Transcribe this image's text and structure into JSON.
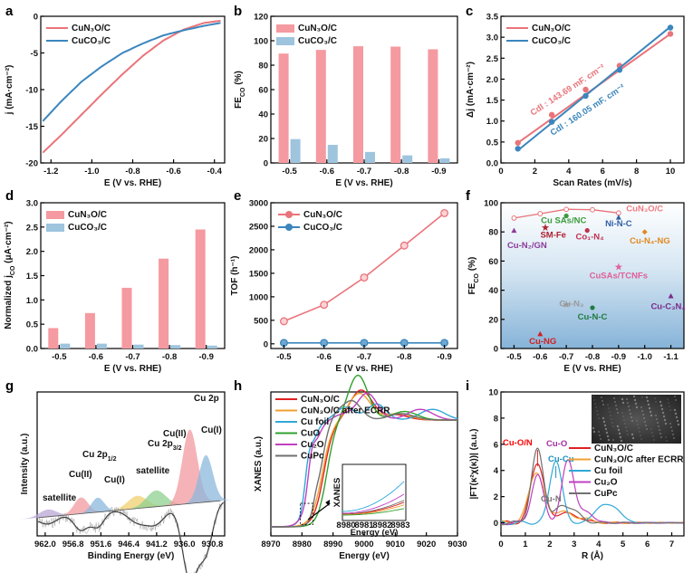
{
  "colors": {
    "red": "#f06a6f",
    "redFill": "#f59aa0",
    "blue": "#2f7fb5",
    "blueFill": "#9ec4de",
    "redLine": "#e9747a",
    "blueLine": "#3b86bd"
  },
  "chart_data": [
    {
      "id": "a",
      "panel": "a",
      "type": "line",
      "xlabel": "E (V vs. RHE)",
      "ylabel": "j (mA·cm⁻²)",
      "xlim": [
        -1.25,
        -0.35
      ],
      "ylim": [
        -20,
        0
      ],
      "xticks": [
        -1.2,
        -1.0,
        -0.8,
        -0.6,
        -0.4
      ],
      "xticklabels": [
        "-1.2",
        "-1.0",
        "-0.8",
        "-0.6",
        "-0.4"
      ],
      "yticks": [
        -20,
        -15,
        -10,
        -5,
        0
      ],
      "yticklabels": [
        "-20",
        "-15",
        "-10",
        "-5",
        "0"
      ],
      "legend_position": "top-left",
      "series": [
        {
          "name": "CuN₃O/C",
          "color": "red",
          "x": [
            -1.24,
            -1.15,
            -1.05,
            -0.95,
            -0.85,
            -0.75,
            -0.65,
            -0.55,
            -0.45,
            -0.37
          ],
          "y": [
            -18.6,
            -16.2,
            -13.4,
            -10.6,
            -7.9,
            -5.4,
            -3.3,
            -1.8,
            -0.9,
            -0.6
          ]
        },
        {
          "name": "CuCO₃/C",
          "color": "blue",
          "x": [
            -1.24,
            -1.15,
            -1.05,
            -0.95,
            -0.85,
            -0.75,
            -0.65,
            -0.55,
            -0.45,
            -0.37
          ],
          "y": [
            -14.3,
            -11.6,
            -8.9,
            -6.8,
            -5.0,
            -3.7,
            -2.6,
            -1.9,
            -1.3,
            -0.9
          ]
        }
      ]
    },
    {
      "id": "b",
      "panel": "b",
      "type": "bar",
      "xlabel": "E (V vs. RHE)",
      "ylabel": "FE",
      "ylabel_sub": "CO",
      "ylabel_unit": " (%)",
      "categories": [
        "-0.5",
        "-0.6",
        "-0.7",
        "-0.8",
        "-0.9"
      ],
      "ylim": [
        0,
        120
      ],
      "yticks": [
        0,
        20,
        40,
        60,
        80,
        100,
        120
      ],
      "yticklabels": [
        "0",
        "20",
        "40",
        "60",
        "80",
        "100",
        "120"
      ],
      "legend_position": "top-left",
      "series": [
        {
          "name": "CuN₃O/C",
          "color": "red",
          "values": [
            89.5,
            92.5,
            95.5,
            95.2,
            93.0
          ]
        },
        {
          "name": "CuCO₃/C",
          "color": "blue",
          "values": [
            19.5,
            14.8,
            9.0,
            6.2,
            3.8
          ]
        }
      ]
    },
    {
      "id": "c",
      "panel": "c",
      "type": "scatter",
      "xlabel": "Scan Rates (mV/s)",
      "ylabel": "Δj (mA·cm⁻²)",
      "xlim": [
        0,
        10.8
      ],
      "ylim": [
        0,
        3.5
      ],
      "xticks": [
        0,
        2,
        4,
        6,
        8,
        10
      ],
      "xticklabels": [
        "0",
        "2",
        "4",
        "6",
        "8",
        "10"
      ],
      "yticks": [
        0,
        0.5,
        1.0,
        1.5,
        2.0,
        2.5,
        3.0,
        3.5
      ],
      "yticklabels": [
        "0.0",
        "0.5",
        "1.0",
        "1.5",
        "2.0",
        "2.5",
        "3.0",
        "3.5"
      ],
      "legend_position": "top-left",
      "series": [
        {
          "name": "CuN₃O/C",
          "color": "red",
          "x": [
            1,
            3,
            5,
            7,
            10
          ],
          "y": [
            0.48,
            1.15,
            1.75,
            2.32,
            3.08
          ],
          "fit": [
            [
              1,
              0.48
            ],
            [
              10,
              3.08
            ]
          ]
        },
        {
          "name": "CuCO₃/C",
          "color": "blue",
          "x": [
            1,
            3,
            5,
            7,
            10
          ],
          "y": [
            0.34,
            0.98,
            1.6,
            2.22,
            3.23
          ],
          "fit": [
            [
              1,
              0.3
            ],
            [
              10,
              3.25
            ]
          ]
        }
      ],
      "annotations": [
        {
          "text": "Cdl : 143.69 mF. cm⁻²",
          "color": "red"
        },
        {
          "text": "Cdl : 160.05  mF. cm⁻²",
          "color": "blue"
        }
      ]
    },
    {
      "id": "d",
      "panel": "d",
      "type": "bar",
      "xlabel": "E (V vs. RHE)",
      "ylabel": "Normalized j",
      "ylabel_sub": "CO",
      "ylabel_unit": " (μA·cm⁻²)",
      "categories": [
        "-0.5",
        "-0.6",
        "-0.7",
        "-0.8",
        "-0.9"
      ],
      "ylim": [
        0,
        3.0
      ],
      "yticks": [
        0,
        0.5,
        1.0,
        1.5,
        2.0,
        2.5,
        3.0
      ],
      "yticklabels": [
        "0.0",
        "0.5",
        "1.0",
        "1.5",
        "2.0",
        "2.5",
        "3.0"
      ],
      "legend_position": "top-left",
      "series": [
        {
          "name": "CuN₃O/C",
          "color": "red",
          "values": [
            0.42,
            0.73,
            1.25,
            1.85,
            2.45
          ]
        },
        {
          "name": "CuCO₃/C",
          "color": "blue",
          "values": [
            0.1,
            0.1,
            0.08,
            0.07,
            0.06
          ]
        }
      ]
    },
    {
      "id": "e",
      "panel": "e",
      "type": "line",
      "xlabel": "E (V vs. RHE)",
      "ylabel": "TOF (h⁻¹)",
      "categories": [
        "-0.5",
        "-0.6",
        "-0.7",
        "-0.8",
        "-0.9"
      ],
      "ylim": [
        -100,
        3000
      ],
      "yticks": [
        0,
        500,
        1000,
        1500,
        2000,
        2500,
        3000
      ],
      "yticklabels": [
        "0",
        "500",
        "1000",
        "1500",
        "2000",
        "2500",
        "3000"
      ],
      "legend_position": "top-left",
      "series": [
        {
          "name": "CuN₃O/C",
          "color": "red",
          "values": [
            480,
            830,
            1410,
            2090,
            2780
          ]
        },
        {
          "name": "CuCO₃/C",
          "color": "blue",
          "values": [
            20,
            20,
            20,
            20,
            20
          ]
        }
      ]
    },
    {
      "id": "f",
      "panel": "f",
      "type": "scatter",
      "xlabel": "E (V vs. RHE)",
      "ylabel": "FE",
      "ylabel_sub": "CO",
      "ylabel_unit": " (%)",
      "xlim": [
        -0.45,
        -1.15
      ],
      "ylim": [
        0,
        100
      ],
      "xticks": [
        -0.5,
        -0.6,
        -0.7,
        -0.8,
        -0.9,
        -1.0,
        -1.1
      ],
      "xticklabels": [
        "-0.5",
        "-0.6",
        "-0.7",
        "-0.8",
        "-0.9",
        "-1.0",
        "-1.1"
      ],
      "yticks": [
        0,
        20,
        40,
        60,
        80,
        100
      ],
      "yticklabels": [
        "0",
        "20",
        "40",
        "60",
        "80",
        "100"
      ],
      "line": {
        "color": "red",
        "x": [
          -0.5,
          -0.6,
          -0.7,
          -0.8,
          -0.9
        ],
        "y": [
          89.5,
          92.5,
          95.5,
          95.2,
          93.0
        ]
      },
      "points": [
        {
          "label": "CuN₃O/C",
          "x": -0.91,
          "y": 95,
          "color": "#f07b82",
          "marker": "none",
          "lx": -1.0,
          "ly": 94
        },
        {
          "label": "Cu SAs/NC",
          "x": -0.7,
          "y": 91,
          "color": "#3a9a3a",
          "marker": "circle",
          "lx": -0.69,
          "ly": 86
        },
        {
          "label": "Ni-N-C",
          "x": -0.9,
          "y": 90,
          "color": "#2f5fa5",
          "marker": "tri",
          "lx": -0.9,
          "ly": 84
        },
        {
          "label": "SM-Fe",
          "x": -0.62,
          "y": 83,
          "color": "#b02030",
          "marker": "star",
          "lx": -0.65,
          "ly": 76
        },
        {
          "label": "Co₁-N₄",
          "x": -0.78,
          "y": 81,
          "color": "#c23050",
          "marker": "circle",
          "lx": -0.79,
          "ly": 75
        },
        {
          "label": "Cu-N₄-NG",
          "x": -1.0,
          "y": 80,
          "color": "#e08a20",
          "marker": "diamond",
          "lx": -1.02,
          "ly": 72
        },
        {
          "label": "Cu-N₂/GN",
          "x": -0.5,
          "y": 81,
          "color": "#8a3a9a",
          "marker": "tri",
          "lx": -0.55,
          "ly": 69
        },
        {
          "label": "CuSAs/TCNFs",
          "x": -0.9,
          "y": 56,
          "color": "#e0609a",
          "marker": "star",
          "lx": -0.9,
          "ly": 48
        },
        {
          "label": "Cu-N₃",
          "x": -0.7,
          "y": 30,
          "color": "#999999",
          "marker": "star",
          "lx": -0.72,
          "ly": 29
        },
        {
          "label": "Cu-N-C",
          "x": -0.8,
          "y": 28,
          "color": "#207a40",
          "marker": "circle",
          "lx": -0.8,
          "ly": 20
        },
        {
          "label": "Cu-C₃N₄",
          "x": -1.1,
          "y": 36,
          "color": "#7a2a8a",
          "marker": "tri",
          "lx": -1.09,
          "ly": 27
        },
        {
          "label": "Cu-NG",
          "x": -0.6,
          "y": 10,
          "color": "#d02020",
          "marker": "tri",
          "lx": -0.61,
          "ly": 3
        }
      ]
    },
    {
      "id": "g",
      "panel": "g",
      "type": "line",
      "xlabel": "Binding Energy (eV)",
      "ylabel": "Intensity (a.u.)",
      "xlim": [
        963.5,
        928.5
      ],
      "xticks": [
        962.0,
        956.8,
        951.6,
        946.4,
        941.2,
        936.0,
        930.8
      ],
      "xticklabels": [
        "962.0",
        "956.8",
        "951.6",
        "946.4",
        "941.2",
        "936.0",
        "930.8"
      ],
      "annotations": [
        {
          "text": "Cu 2p",
          "color": "#111"
        },
        {
          "text": "Cu 2p",
          "sub": "1/2",
          "color": "#111"
        },
        {
          "text": "Cu 2p",
          "sub": "3/2",
          "color": "#111"
        },
        {
          "text": "Cu(II)",
          "color": "red"
        },
        {
          "text": "Cu(I)",
          "color": "blue"
        },
        {
          "text": "Cu(II)",
          "color": "red"
        },
        {
          "text": "Cu(I)",
          "color": "blue"
        },
        {
          "text": "satellite",
          "color": "#111"
        },
        {
          "text": "satellite",
          "color": "#111"
        }
      ]
    },
    {
      "id": "h",
      "panel": "h",
      "type": "line",
      "xlabel": "Energy (eV)",
      "ylabel": "XANES (a.u.)",
      "xlim": [
        8970,
        9030
      ],
      "xticks": [
        8970,
        8980,
        8990,
        9000,
        9010,
        9020,
        9030
      ],
      "xticklabels": [
        "8970",
        "8980",
        "8990",
        "9000",
        "9010",
        "9020",
        "9030"
      ],
      "legend_position": "top-left",
      "series": [
        {
          "name": "CuN₃O/C",
          "color": "#e02020"
        },
        {
          "name": "CuN₃O/C after ECRR",
          "color": "#f0a030"
        },
        {
          "name": "Cu foil",
          "color": "#30a8d8"
        },
        {
          "name": "CuO",
          "color": "#30a030"
        },
        {
          "name": "Cu₂O",
          "color": "#c040c0"
        },
        {
          "name": "CuPc",
          "color": "#707070"
        }
      ],
      "inset": {
        "xlabel": "Energy (eV)",
        "ylabel": "XANES",
        "xticks": [
          8980,
          8981,
          8982,
          8983
        ],
        "xticklabels": [
          "8980",
          "8981",
          "8982",
          "8983"
        ]
      }
    },
    {
      "id": "i",
      "panel": "i",
      "type": "line",
      "xlabel": "R (Å)",
      "ylabel": "|FT(κ²χ(κ))| (a.u.)",
      "xlim": [
        0,
        7.5
      ],
      "ylim": [
        -1,
        10
      ],
      "xticks": [
        0,
        1,
        2,
        3,
        4,
        5,
        6,
        7
      ],
      "xticklabels": [
        "0",
        "1",
        "2",
        "3",
        "4",
        "5",
        "6",
        "7"
      ],
      "yticks": [
        0,
        2,
        4,
        6,
        8,
        10
      ],
      "yticklabels": [
        "0",
        "2",
        "4",
        "6",
        "8",
        "10"
      ],
      "legend_position": "right",
      "series": [
        {
          "name": "CuN₃O/C",
          "color": "#e02020"
        },
        {
          "name": "CuN₃O/C after ECRR",
          "color": "#f0a030"
        },
        {
          "name": "Cu foil",
          "color": "#30a8d8"
        },
        {
          "name": "Cu₂O",
          "color": "#c040c0"
        },
        {
          "name": "CuPc",
          "color": "#707070"
        }
      ],
      "annotations": [
        {
          "text": "Cu-O/N",
          "color": "red"
        },
        {
          "text": "Cu-O",
          "color": "#a030a0"
        },
        {
          "text": "Cu-Cu",
          "color": "#2090c0"
        },
        {
          "text": "Cu-N",
          "color": "#777"
        }
      ]
    }
  ]
}
